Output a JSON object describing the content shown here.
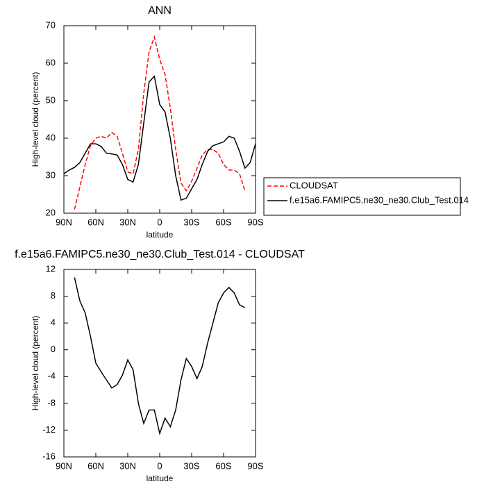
{
  "chart_data": [
    {
      "type": "line",
      "title": "ANN",
      "xlabel": "latitude",
      "ylabel": "High-level cloud (percent)",
      "x": [
        90,
        85,
        80,
        75,
        70,
        65,
        60,
        55,
        50,
        45,
        40,
        35,
        30,
        25,
        20,
        15,
        10,
        5,
        0,
        -5,
        -10,
        -15,
        -20,
        -25,
        -30,
        -35,
        -40,
        -45,
        -50,
        -55,
        -60,
        -65,
        -70,
        -75,
        -80,
        -85,
        -90
      ],
      "xlim": [
        90,
        -90
      ],
      "xticks": [
        {
          "value": 90,
          "label": "90N"
        },
        {
          "value": 60,
          "label": "60N"
        },
        {
          "value": 30,
          "label": "30N"
        },
        0,
        {
          "value": -30,
          "label": "30S"
        },
        {
          "value": -60,
          "label": "60S"
        },
        {
          "value": -90,
          "label": "90S"
        }
      ],
      "ylim": [
        20,
        70
      ],
      "yticks": [
        20,
        30,
        40,
        50,
        60,
        70
      ],
      "legend": "right",
      "series": [
        {
          "name": "CLOUDSAT",
          "color": "#ff0000",
          "dashed": true,
          "values": [
            null,
            null,
            21,
            27,
            33,
            38,
            40,
            40.5,
            40,
            41.5,
            40.5,
            36,
            31,
            30.5,
            37,
            52,
            63,
            67,
            61,
            57,
            48,
            37,
            28,
            26,
            28.5,
            32,
            35.5,
            37,
            37,
            36,
            33,
            31.5,
            31.5,
            30.5,
            26,
            null,
            null
          ]
        },
        {
          "name": "f.e15a6.FAMIPC5.ne30_ne30.Club_Test.014",
          "color": "#000000",
          "dashed": false,
          "values": [
            30.5,
            31.5,
            32.2,
            33.5,
            36,
            38.5,
            38.5,
            37.8,
            36,
            35.8,
            35.5,
            33,
            29,
            28.3,
            33,
            44,
            55,
            56.5,
            49,
            47,
            40,
            30,
            23.5,
            24,
            26.5,
            29,
            33,
            36.5,
            38,
            38.5,
            39,
            40.5,
            40,
            36.5,
            32,
            33.5,
            38.5
          ]
        }
      ]
    },
    {
      "type": "line",
      "title": "f.e15a6.FAMIPC5.ne30_ne30.Club_Test.014 - CLOUDSAT",
      "xlabel": "latitude",
      "ylabel": "High-level cloud (percent)",
      "x": [
        90,
        85,
        80,
        75,
        70,
        65,
        60,
        55,
        50,
        45,
        40,
        35,
        30,
        25,
        20,
        15,
        10,
        5,
        0,
        -5,
        -10,
        -15,
        -20,
        -25,
        -30,
        -35,
        -40,
        -45,
        -50,
        -55,
        -60,
        -65,
        -70,
        -75,
        -80,
        -85,
        -90
      ],
      "xlim": [
        90,
        -90
      ],
      "xticks": [
        {
          "value": 90,
          "label": "90N"
        },
        {
          "value": 60,
          "label": "60N"
        },
        {
          "value": 30,
          "label": "30N"
        },
        0,
        {
          "value": -30,
          "label": "30S"
        },
        {
          "value": -60,
          "label": "60S"
        },
        {
          "value": -90,
          "label": "90S"
        }
      ],
      "ylim": [
        -16,
        12
      ],
      "yticks": [
        -16,
        -12,
        -8,
        -4,
        0,
        4,
        8,
        12
      ],
      "color": "#000000",
      "values": [
        null,
        null,
        10.8,
        7.3,
        5.5,
        2,
        -2,
        -3.3,
        -4.5,
        -5.7,
        -5.2,
        -3.8,
        -1.5,
        -3,
        -8,
        -11,
        -9,
        -9,
        -12.5,
        -10.2,
        -11.5,
        -9,
        -4.5,
        -1.3,
        -2.5,
        -4.3,
        -2.5,
        1,
        4,
        7,
        8.5,
        9.3,
        8.5,
        6.7,
        6.3,
        null,
        null
      ]
    }
  ]
}
